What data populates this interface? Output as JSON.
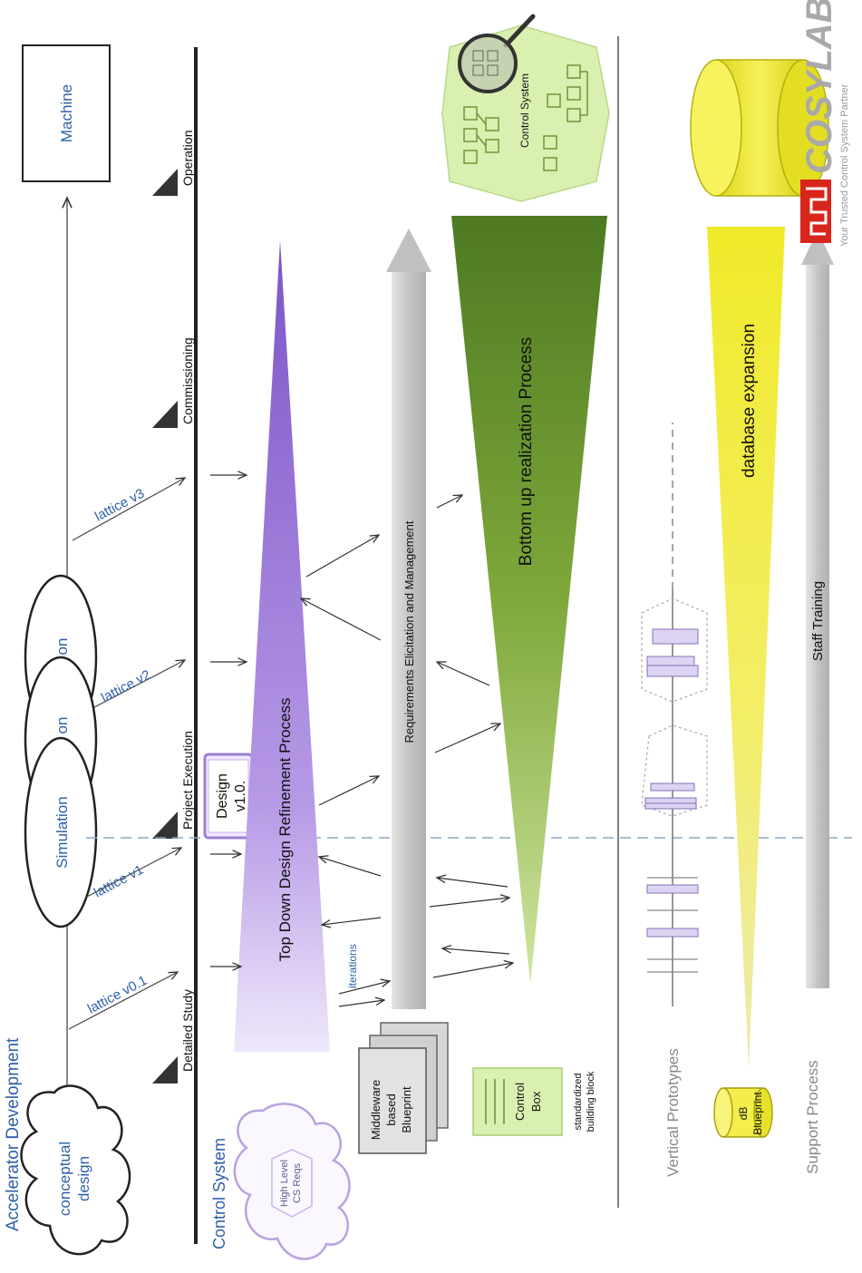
{
  "sections": {
    "accelerator": "Accelerator Development",
    "control_system": "Control System",
    "vertical_prototypes": "Vertical Prototypes",
    "support_process": "Support Process"
  },
  "accelerator": {
    "machine": "Machine",
    "conceptual_design_line1": "conceptual",
    "conceptual_design_line2": "design",
    "simulation_main": "Simulation",
    "simulation_fragment": "on",
    "lattices": {
      "v01": "lattice v0.1",
      "v1": "lattice v1",
      "v2": "lattice v2",
      "v3": "lattice v3"
    }
  },
  "milestones": {
    "detailed_study": "Detailed Study",
    "project_execution": "Project Execution",
    "commissioning": "Commissioning",
    "operation": "Operation"
  },
  "control_system": {
    "design_doc_line1": "Design",
    "design_doc_line2": "v1.0.",
    "high_level_reqs_line1": "High Level",
    "high_level_reqs_line2": "CS Reqs",
    "top_down": "Top Down Design Refinement Process",
    "iterations": "iterations",
    "requirements": "Requirements Elicitation and Management",
    "bottom_up": "Bottom up realization Process",
    "blueprint_line1": "Middleware",
    "blueprint_line2": "based",
    "blueprint_line3": "Blueprint",
    "control_box_line1": "Control",
    "control_box_line2": "Box",
    "building_block_line1": "standardized",
    "building_block_line2": "building block",
    "control_system_label": "Control System"
  },
  "support": {
    "database_expansion": "database expansion",
    "db_blueprint_line1": "dB",
    "db_blueprint_line2": "Blueprint",
    "staff_training": "Staff Training"
  },
  "logo": {
    "brand": "COSYLAB",
    "tagline": "Your Trusted Control System Partner"
  },
  "colors": {
    "purple": "#9b7fd4",
    "green_dark": "#5a8a2a",
    "green_light": "#d9f0b0",
    "yellow": "#f2ec3a",
    "text_blue": "#2e5fa8",
    "arrow_gray": "#c8c8c8",
    "cosylab_red": "#d9261c"
  }
}
